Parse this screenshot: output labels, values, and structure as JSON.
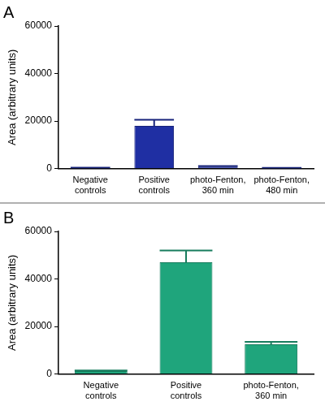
{
  "chart_data": [
    {
      "type": "bar",
      "title": "A",
      "categories": [
        "Negative controls",
        "Positive controls",
        "photo-Fenton, 360 min",
        "photo-Fenton, 480 min"
      ],
      "values": [
        300,
        18000,
        800,
        200
      ],
      "errors": [
        100,
        2500,
        300,
        100
      ],
      "color": "#1f2fa3",
      "ylabel": "Area (arbitrary units)",
      "ylim": [
        0,
        60000
      ],
      "yticks": [
        0,
        20000,
        40000,
        60000
      ],
      "grid": false
    },
    {
      "type": "bar",
      "title": "B",
      "categories": [
        "Negative controls",
        "Positive controls",
        "photo-Fenton, 360 min"
      ],
      "values": [
        1200,
        47000,
        12500
      ],
      "errors": [
        300,
        5000,
        1000
      ],
      "color": "#1fa57c",
      "ylabel": "Area (arbitrary units)",
      "ylim": [
        0,
        60000
      ],
      "yticks": [
        0,
        20000,
        40000,
        60000
      ],
      "grid": false
    }
  ]
}
